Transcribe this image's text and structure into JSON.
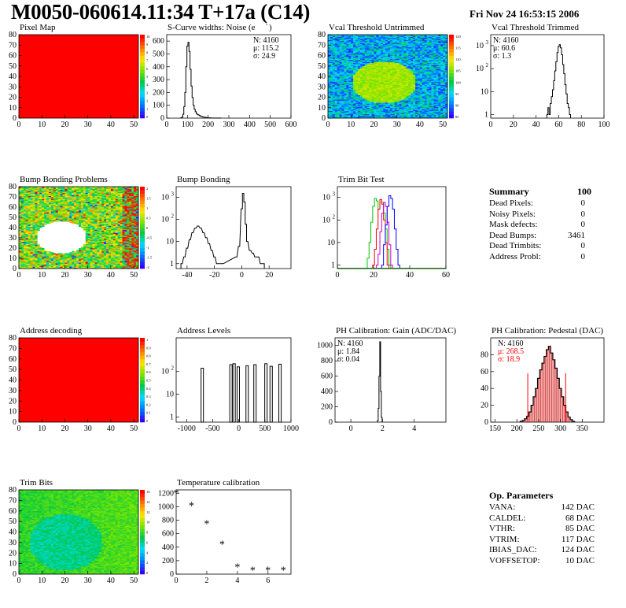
{
  "header": {
    "title": "M0050-060614.11:34 T+17a (C14)",
    "date": "Fri Nov 24 16:53:15 2006"
  },
  "colors": {
    "heat_low": "#3300ff",
    "heat_mid": "#00c800",
    "heat_high": "#ff0000",
    "hist_line": "#000000",
    "trim_green": "#00c800",
    "trim_red": "#ff0000",
    "trim_blue": "#0000ff",
    "trim_purple": "#cc00cc",
    "stat_red": "#ff0000",
    "pedestal_fill": "#cc0000"
  },
  "chart_data": [
    {
      "id": "pixel-map",
      "type": "heatmap",
      "title": "Pixel Map",
      "xlim": [
        0,
        52
      ],
      "ylim": [
        0,
        80
      ],
      "x_ticks": [
        "0",
        "10",
        "20",
        "30",
        "40",
        "50"
      ],
      "y_ticks": [
        "0",
        "10",
        "20",
        "30",
        "40",
        "50",
        "60",
        "70",
        "80"
      ],
      "z_ticks": [
        "10",
        "9",
        "8",
        "7",
        "6",
        "5",
        "4",
        "3",
        "2",
        "1",
        "0"
      ],
      "pattern": "uniform",
      "value": 10,
      "zlim": [
        0,
        10
      ]
    },
    {
      "id": "scurve-widths",
      "type": "bar",
      "title": "S-Curve widths: Noise (e",
      "title_sup": "-",
      "title_close": ")",
      "xlim": [
        0,
        600
      ],
      "ylim": [
        0,
        650
      ],
      "x_ticks": [
        "0",
        "100",
        "200",
        "300",
        "400",
        "500",
        "600"
      ],
      "y_ticks": [
        "0",
        "100",
        "200",
        "300",
        "400",
        "500",
        "600"
      ],
      "stats": [
        "N: 4160",
        "μ: 115.2",
        "σ: 24.9"
      ],
      "x": [
        70,
        75,
        80,
        85,
        90,
        95,
        100,
        105,
        110,
        115,
        120,
        125,
        130,
        135,
        140,
        145,
        150,
        155,
        160,
        165,
        170,
        175,
        180,
        185,
        190,
        195,
        200,
        210,
        220,
        230,
        240,
        260
      ],
      "values": [
        2,
        8,
        30,
        90,
        200,
        400,
        560,
        590,
        520,
        380,
        250,
        160,
        100,
        70,
        50,
        35,
        28,
        24,
        20,
        15,
        12,
        10,
        8,
        6,
        5,
        4,
        3,
        2,
        1,
        1,
        1,
        1
      ]
    },
    {
      "id": "vcal-untrimmed",
      "type": "heatmap",
      "title": "Vcal Threshold Untrimmed",
      "xlim": [
        0,
        52
      ],
      "ylim": [
        0,
        80
      ],
      "x_ticks": [
        "0",
        "10",
        "20",
        "30",
        "40",
        "50"
      ],
      "y_ticks": [
        "0",
        "10",
        "20",
        "30",
        "40",
        "50",
        "60",
        "70",
        "80"
      ],
      "z_ticks": [
        "120",
        "115",
        "110",
        "105",
        "100",
        "95",
        "90",
        "85"
      ],
      "pattern": "blob",
      "blob_center": [
        24,
        34
      ],
      "blob_radius": 14,
      "zlim": [
        85,
        122
      ]
    },
    {
      "id": "vcal-trimmed",
      "type": "bar",
      "title": "Vcal Threshold Trimmed",
      "log": true,
      "xlim": [
        0,
        100
      ],
      "ylim": [
        0.7,
        3000
      ],
      "x_ticks": [
        "0",
        "20",
        "40",
        "60",
        "80",
        "100"
      ],
      "y_ticks": [
        "1",
        "10",
        "10²",
        "10³"
      ],
      "stats": [
        "N: 4160",
        "μ: 60.6",
        "σ:  1.3"
      ],
      "x": [
        50,
        51,
        52,
        53,
        54,
        55,
        56,
        57,
        58,
        59,
        60,
        61,
        62,
        63,
        64,
        65,
        66,
        67,
        68,
        69,
        70
      ],
      "values": [
        1,
        2,
        1,
        3,
        6,
        12,
        30,
        80,
        200,
        500,
        900,
        1100,
        800,
        400,
        150,
        60,
        20,
        8,
        3,
        2,
        1
      ]
    },
    {
      "id": "bump-problems",
      "type": "heatmap",
      "title": "Bump Bonding Problems",
      "xlim": [
        0,
        52
      ],
      "ylim": [
        0,
        80
      ],
      "x_ticks": [
        "0",
        "10",
        "20",
        "30",
        "40",
        "50"
      ],
      "y_ticks": [
        "0",
        "10",
        "20",
        "30",
        "40",
        "50",
        "60",
        "70",
        "80"
      ],
      "z_ticks": [
        "2",
        "1.5",
        "1",
        "0.5",
        "0",
        "-0.5",
        "-1",
        "-1.5",
        "-2"
      ],
      "pattern": "bump",
      "hole_center": [
        18,
        30
      ],
      "hole_radius": 11,
      "zlim": [
        -2,
        2
      ]
    },
    {
      "id": "bump-bonding",
      "type": "bar",
      "title": "Bump Bonding",
      "log": true,
      "xlim": [
        -48,
        36
      ],
      "ylim": [
        0.6,
        3000
      ],
      "x_ticks": [
        "-40",
        "-20",
        "0",
        "20"
      ],
      "y_ticks": [
        "1",
        "10",
        "10²",
        "10³"
      ],
      "x": [
        -44,
        -42,
        -40,
        -38,
        -36,
        -34,
        -32,
        -30,
        -28,
        -26,
        -24,
        -22,
        -20,
        -18,
        -16,
        -14,
        -4,
        -2,
        0,
        1,
        2,
        3,
        4,
        6,
        8,
        10,
        12,
        14,
        16
      ],
      "values": [
        1,
        2,
        5,
        12,
        25,
        40,
        50,
        40,
        25,
        15,
        8,
        4,
        2,
        1,
        1,
        1,
        2,
        6,
        300,
        1500,
        600,
        60,
        10,
        4,
        3,
        2,
        2,
        1,
        1
      ]
    },
    {
      "id": "trim-bit-test",
      "type": "line",
      "title": "Trim Bit Test",
      "log": true,
      "xlim": [
        0,
        60
      ],
      "ylim": [
        0.7,
        3000
      ],
      "x_ticks": [
        "0",
        "20",
        "40",
        "60"
      ],
      "y_ticks": [
        "1",
        "10",
        "10²",
        "10³"
      ],
      "series": [
        {
          "color_key": "trim_green",
          "x": [
            17,
            18,
            19,
            20,
            21,
            22,
            23,
            24,
            25,
            26,
            27,
            28,
            29
          ],
          "values": [
            2,
            10,
            80,
            400,
            900,
            700,
            300,
            800,
            600,
            200,
            40,
            5,
            1
          ]
        },
        {
          "color_key": "trim_red",
          "x": [
            20,
            21,
            22,
            23,
            24,
            25,
            26,
            27,
            28
          ],
          "values": [
            1,
            5,
            40,
            300,
            800,
            500,
            100,
            10,
            1
          ]
        },
        {
          "color_key": "trim_purple",
          "x": [
            22,
            23,
            24,
            25,
            26,
            27,
            28,
            29,
            30
          ],
          "values": [
            1,
            3,
            30,
            200,
            600,
            400,
            80,
            8,
            1
          ]
        },
        {
          "color_key": "trim_blue",
          "x": [
            25,
            26,
            27,
            28,
            29,
            30,
            31,
            32,
            33,
            34
          ],
          "values": [
            1,
            8,
            60,
            400,
            1200,
            900,
            300,
            40,
            5,
            1
          ]
        }
      ]
    },
    {
      "id": "address-decoding",
      "type": "heatmap",
      "title": "Address decoding",
      "xlim": [
        0,
        52
      ],
      "ylim": [
        0,
        80
      ],
      "x_ticks": [
        "0",
        "10",
        "20",
        "30",
        "40",
        "50"
      ],
      "y_ticks": [
        "0",
        "10",
        "20",
        "30",
        "40",
        "50",
        "60",
        "70",
        "80"
      ],
      "z_ticks": [
        "1",
        "0.9",
        "0.8",
        "0.7",
        "0.6",
        "0.5",
        "0.4",
        "0.3",
        "0.2",
        "0.1",
        "0"
      ],
      "pattern": "uniform",
      "value": 1,
      "zlim": [
        0,
        1
      ]
    },
    {
      "id": "address-levels",
      "type": "bar",
      "title": "Address Levels",
      "log": true,
      "xlim": [
        -1200,
        1000
      ],
      "ylim": [
        0.6,
        3000
      ],
      "x_ticks": [
        "-1000",
        "-500",
        "0",
        "500",
        "1000"
      ],
      "y_ticks": [
        "1",
        "10",
        "10²"
      ],
      "x": [
        -700,
        -150,
        -90,
        -10,
        160,
        310,
        520,
        620,
        790
      ],
      "values": [
        140,
        200,
        220,
        160,
        180,
        200,
        220,
        170,
        210
      ]
    },
    {
      "id": "ph-gain",
      "type": "bar",
      "title": "PH Calibration: Gain (ADC/DAC)",
      "xlim": [
        -1,
        6
      ],
      "ylim": [
        0,
        1100
      ],
      "x_ticks": [
        "0",
        "2",
        "4"
      ],
      "y_ticks": [
        "0",
        "200",
        "400",
        "600",
        "800",
        "1000"
      ],
      "stats": [
        "N: 4160",
        "μ: 1.84",
        "σ: 0.04"
      ],
      "x": [
        1.7,
        1.75,
        1.8,
        1.85,
        1.9,
        1.95
      ],
      "values": [
        20,
        180,
        600,
        1050,
        400,
        60
      ]
    },
    {
      "id": "ph-pedestal",
      "type": "bar",
      "title": "PH Calibration: Pedestal (DAC)",
      "xlim": [
        140,
        400
      ],
      "ylim": [
        0,
        100
      ],
      "x_ticks": [
        "150",
        "200",
        "250",
        "300",
        "350"
      ],
      "y_ticks": [
        "0",
        "20",
        "40",
        "60",
        "80"
      ],
      "stats": [
        "N: 4160",
        "μ: 268.5",
        "σ: 18.9"
      ],
      "stat_red_from": 1,
      "x": [
        210,
        215,
        220,
        225,
        230,
        235,
        240,
        245,
        250,
        255,
        260,
        265,
        270,
        275,
        280,
        285,
        290,
        295,
        300,
        305,
        310,
        315,
        320,
        325,
        330
      ],
      "values": [
        1,
        2,
        4,
        7,
        12,
        20,
        30,
        40,
        52,
        62,
        70,
        78,
        86,
        90,
        82,
        74,
        64,
        52,
        40,
        30,
        20,
        12,
        6,
        3,
        1
      ],
      "markers": [
        225,
        312
      ]
    },
    {
      "id": "trim-bits",
      "type": "heatmap",
      "title": "Trim Bits",
      "xlim": [
        0,
        52
      ],
      "ylim": [
        0,
        80
      ],
      "x_ticks": [
        "0",
        "10",
        "20",
        "30",
        "40",
        "50"
      ],
      "y_ticks": [
        "0",
        "10",
        "20",
        "30",
        "40",
        "50",
        "60",
        "70",
        "80"
      ],
      "z_ticks": [
        "16",
        "14",
        "12",
        "10",
        "8",
        "6",
        "4",
        "2",
        "0"
      ],
      "pattern": "trim",
      "blob_center": [
        20,
        30
      ],
      "blob_radius": 16,
      "zlim": [
        0,
        16
      ]
    },
    {
      "id": "temp-calibration",
      "type": "scatter",
      "title": "Temperature calibration",
      "xlim": [
        0,
        7.5
      ],
      "ylim": [
        0,
        1250
      ],
      "x_ticks": [
        "0",
        "2",
        "4",
        "6"
      ],
      "y_ticks": [
        "0",
        "200",
        "400",
        "600",
        "800",
        "1000",
        "1200"
      ],
      "x": [
        0,
        1,
        2,
        3,
        4,
        5,
        6,
        7
      ],
      "values": [
        1200,
        1010,
        740,
        440,
        100,
        50,
        50,
        50
      ]
    }
  ],
  "summary": {
    "title": "Summary",
    "score": "100",
    "rows": [
      {
        "label": "Dead Pixels:",
        "value": "0"
      },
      {
        "label": "Noisy Pixels:",
        "value": "0"
      },
      {
        "label": "Mask defects:",
        "value": "0"
      },
      {
        "label": "Dead Bumps:",
        "value": "3461"
      },
      {
        "label": "Dead Trimbits:",
        "value": "0"
      },
      {
        "label": "Address Probl:",
        "value": "0"
      }
    ]
  },
  "op_params": {
    "title": "Op. Parameters",
    "rows": [
      {
        "label": "VANA:",
        "value": "142 DAC"
      },
      {
        "label": "CALDEL:",
        "value": "68 DAC"
      },
      {
        "label": "VTHR:",
        "value": "85 DAC"
      },
      {
        "label": "VTRIM:",
        "value": "117 DAC"
      },
      {
        "label": "IBIAS_DAC:",
        "value": "124 DAC"
      },
      {
        "label": "VOFFSETOP:",
        "value": "10 DAC"
      }
    ]
  }
}
